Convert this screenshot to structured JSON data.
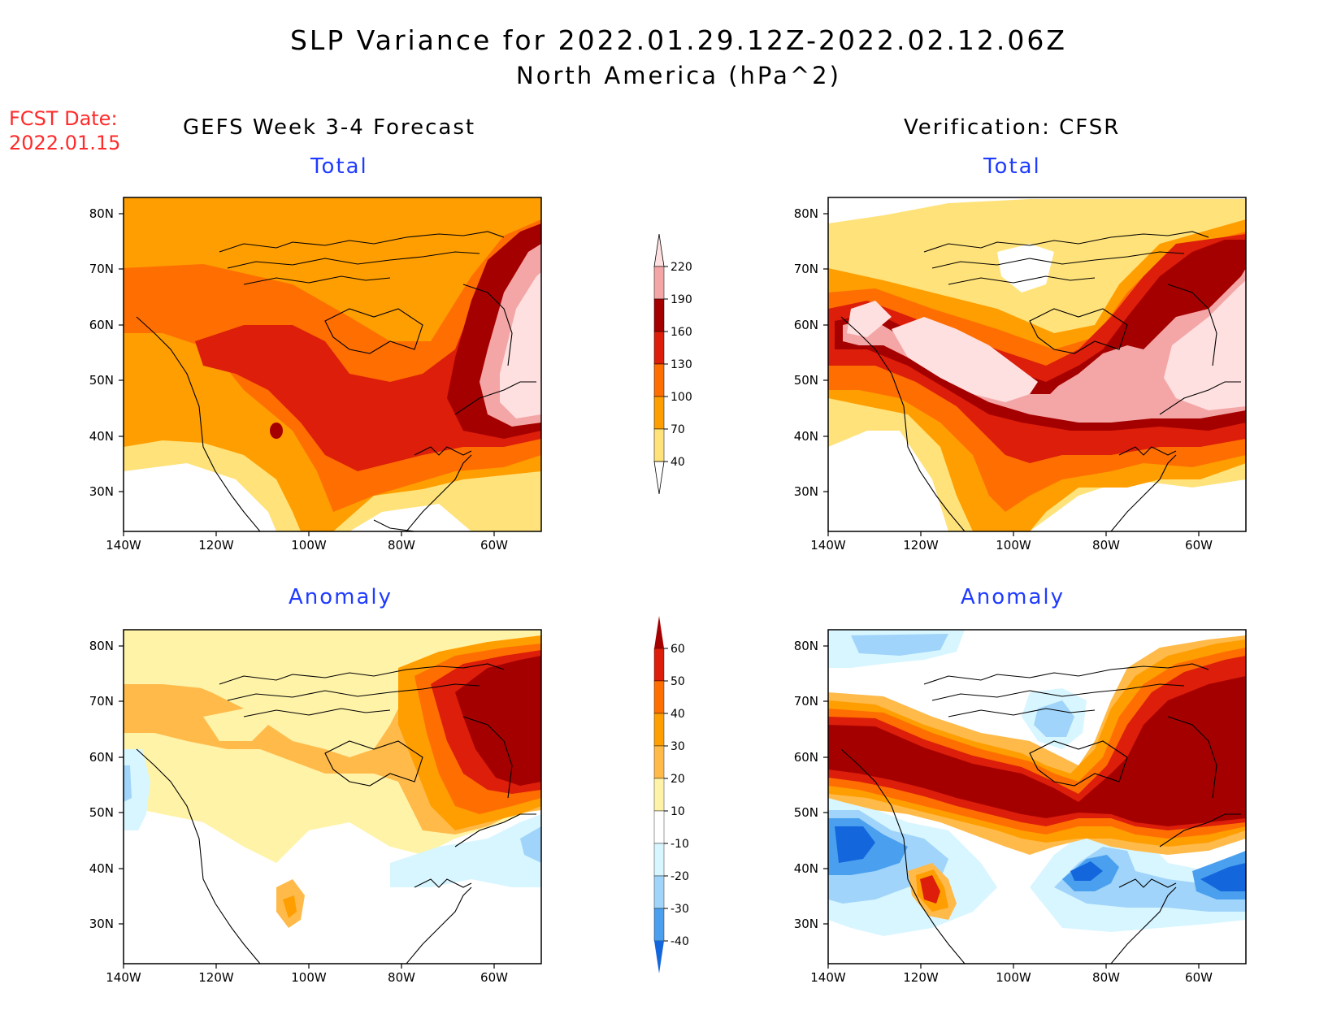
{
  "title": {
    "line1": "SLP Variance for 2022.01.29.12Z-2022.02.12.06Z",
    "line2": "North America (hPa^2)"
  },
  "fcst": {
    "label": "FCST Date:",
    "date": "2022.01.15"
  },
  "columns": {
    "left": "GEFS Week 3-4 Forecast",
    "right": "Verification: CFSR"
  },
  "panels": {
    "forecast_total": "Total",
    "verification_total": "Total",
    "forecast_anomaly": "Anomaly",
    "verification_anomaly": "Anomaly"
  },
  "axes": {
    "lat_labels": [
      "80N",
      "70N",
      "60N",
      "50N",
      "40N",
      "30N"
    ],
    "lon_labels": [
      "140W",
      "120W",
      "100W",
      "80W",
      "60W"
    ]
  },
  "total_colorbar": {
    "labels": [
      "220",
      "190",
      "160",
      "130",
      "100",
      "70",
      "40"
    ],
    "colors": [
      "#ffe0e0",
      "#f4a6a6",
      "#a50000",
      "#dc1e0a",
      "#ff6e00",
      "#ff9e00",
      "#ffe27a"
    ]
  },
  "anomaly_colorbar": {
    "labels": [
      "60",
      "50",
      "40",
      "30",
      "20",
      "10",
      "-10",
      "-20",
      "-30",
      "-40"
    ],
    "colors": [
      "#a50000",
      "#dc1e0a",
      "#ff6e00",
      "#ff9e00",
      "#ffba4a",
      "#fff3a8",
      "#ffffff",
      "#d8f6ff",
      "#a0d4fa",
      "#4aa0ef",
      "#1466dc"
    ]
  }
}
